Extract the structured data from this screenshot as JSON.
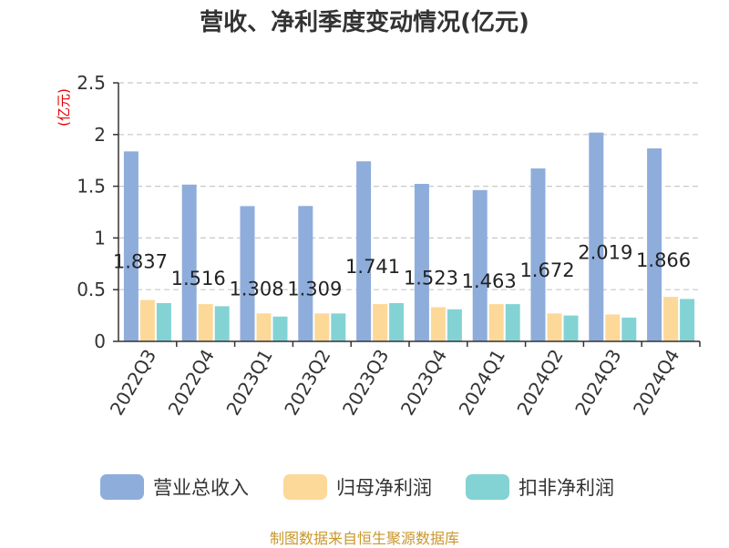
{
  "title": "营收、净利季度变动情况(亿元)",
  "source": "制图数据来自恒生聚源数据库",
  "chart_data": {
    "type": "bar",
    "title": "营收、净利季度变动情况(亿元)",
    "ylabel": "(亿元)",
    "ylim": [
      0,
      2.5
    ],
    "yticks": [
      "0",
      "0.5",
      "1",
      "1.5",
      "2",
      "2.5"
    ],
    "grid": true,
    "legend_position": "bottom",
    "categories": [
      "2022Q3",
      "2022Q4",
      "2023Q1",
      "2023Q2",
      "2023Q3",
      "2023Q4",
      "2024Q1",
      "2024Q2",
      "2024Q3",
      "2024Q4"
    ],
    "series": [
      {
        "name": "营业总收入",
        "color": "#8eaddb",
        "values": [
          1.837,
          1.516,
          1.308,
          1.309,
          1.741,
          1.523,
          1.463,
          1.672,
          2.019,
          1.866
        ],
        "labels": [
          "1.837",
          "1.516",
          "1.308",
          "1.309",
          "1.741",
          "1.523",
          "1.463",
          "1.672",
          "2.019",
          "1.866"
        ]
      },
      {
        "name": "归母净利润",
        "color": "#fcd899",
        "values": [
          0.4,
          0.36,
          0.27,
          0.27,
          0.36,
          0.33,
          0.36,
          0.27,
          0.26,
          0.43
        ]
      },
      {
        "name": "扣非净利润",
        "color": "#84d3d4",
        "values": [
          0.37,
          0.34,
          0.24,
          0.27,
          0.37,
          0.31,
          0.36,
          0.25,
          0.23,
          0.41
        ]
      }
    ]
  }
}
